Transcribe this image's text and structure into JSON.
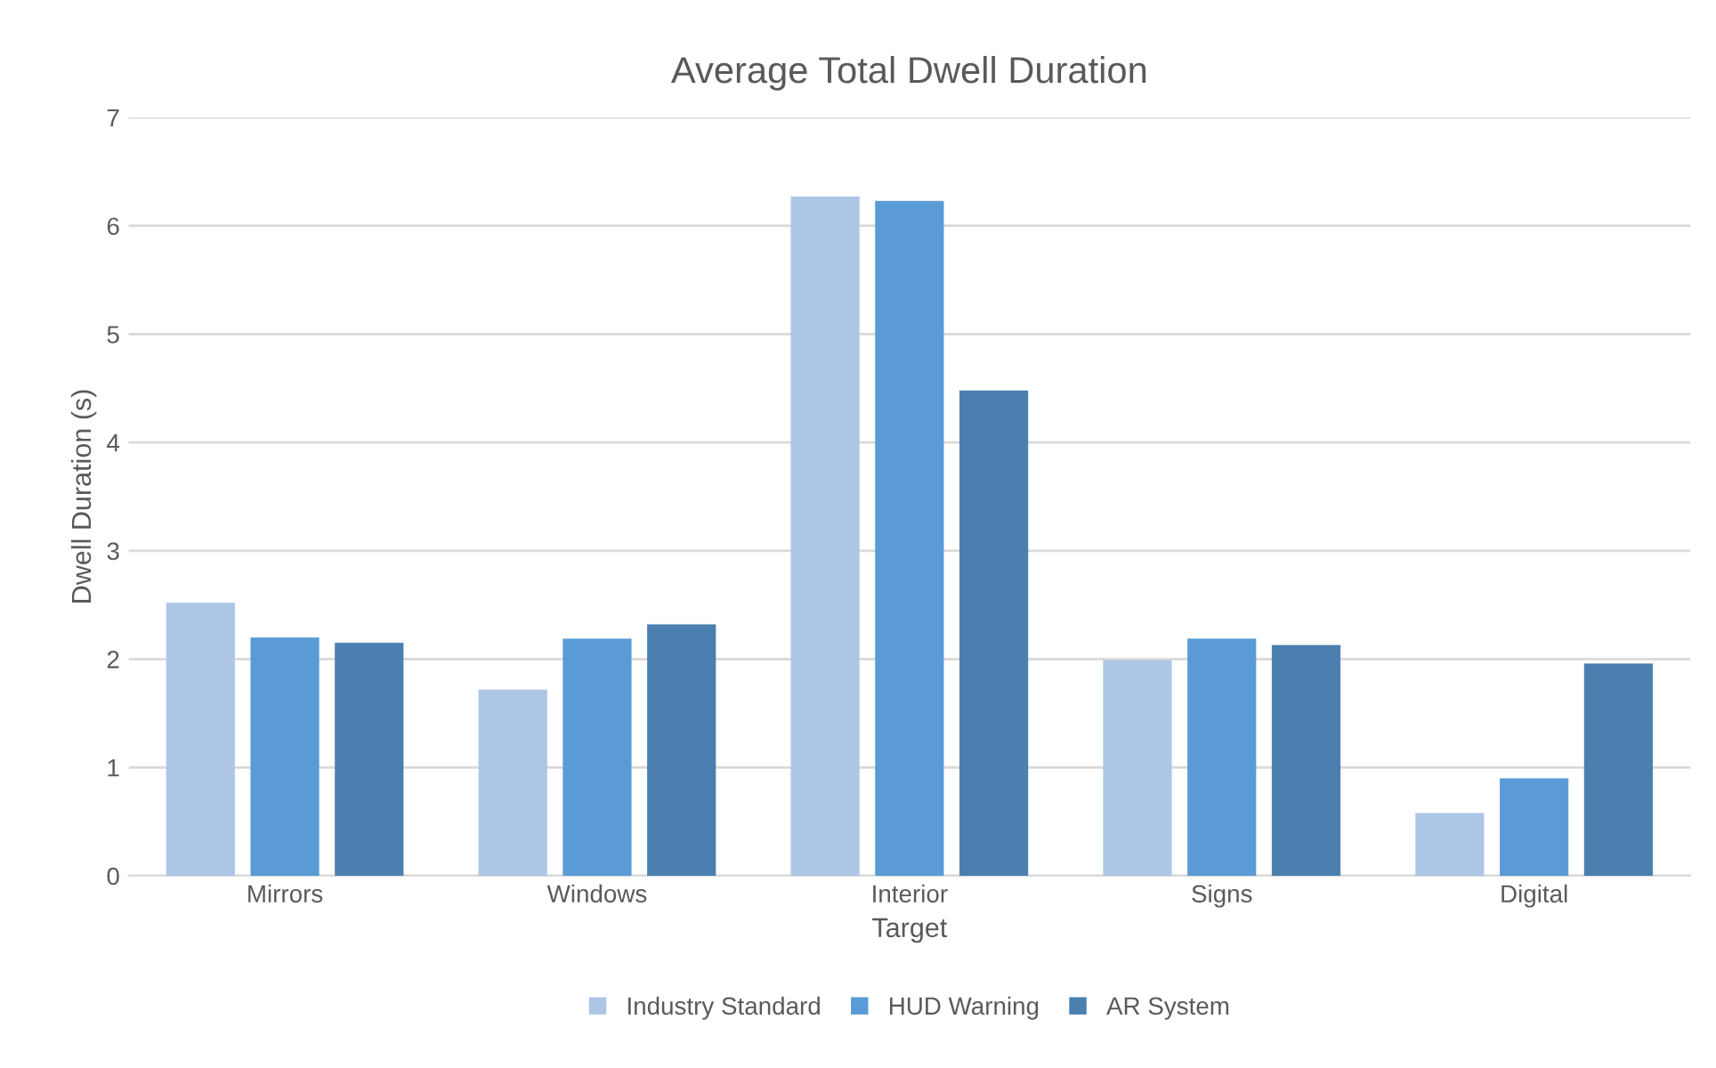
{
  "chart_data": {
    "type": "bar",
    "title": "Average Total Dwell Duration",
    "xlabel": "Target",
    "ylabel": "Dwell Duration (s)",
    "categories": [
      "Mirrors",
      "Windows",
      "Interior",
      "Signs",
      "Digital"
    ],
    "series": [
      {
        "name": "Industry Standard",
        "color": "#adc6e6",
        "values": [
          2.52,
          1.72,
          6.27,
          1.99,
          0.58
        ]
      },
      {
        "name": "HUD Warning",
        "color": "#5b9bd5",
        "values": [
          2.2,
          2.19,
          6.23,
          2.19,
          0.9
        ]
      },
      {
        "name": "AR System",
        "color": "#4a7fb0",
        "values": [
          2.15,
          2.32,
          4.48,
          2.13,
          1.96
        ]
      }
    ],
    "ylim": [
      0,
      7
    ],
    "yticks": [
      0,
      1,
      2,
      3,
      4,
      5,
      6,
      7
    ],
    "grid": "y",
    "legend": "bottom"
  }
}
